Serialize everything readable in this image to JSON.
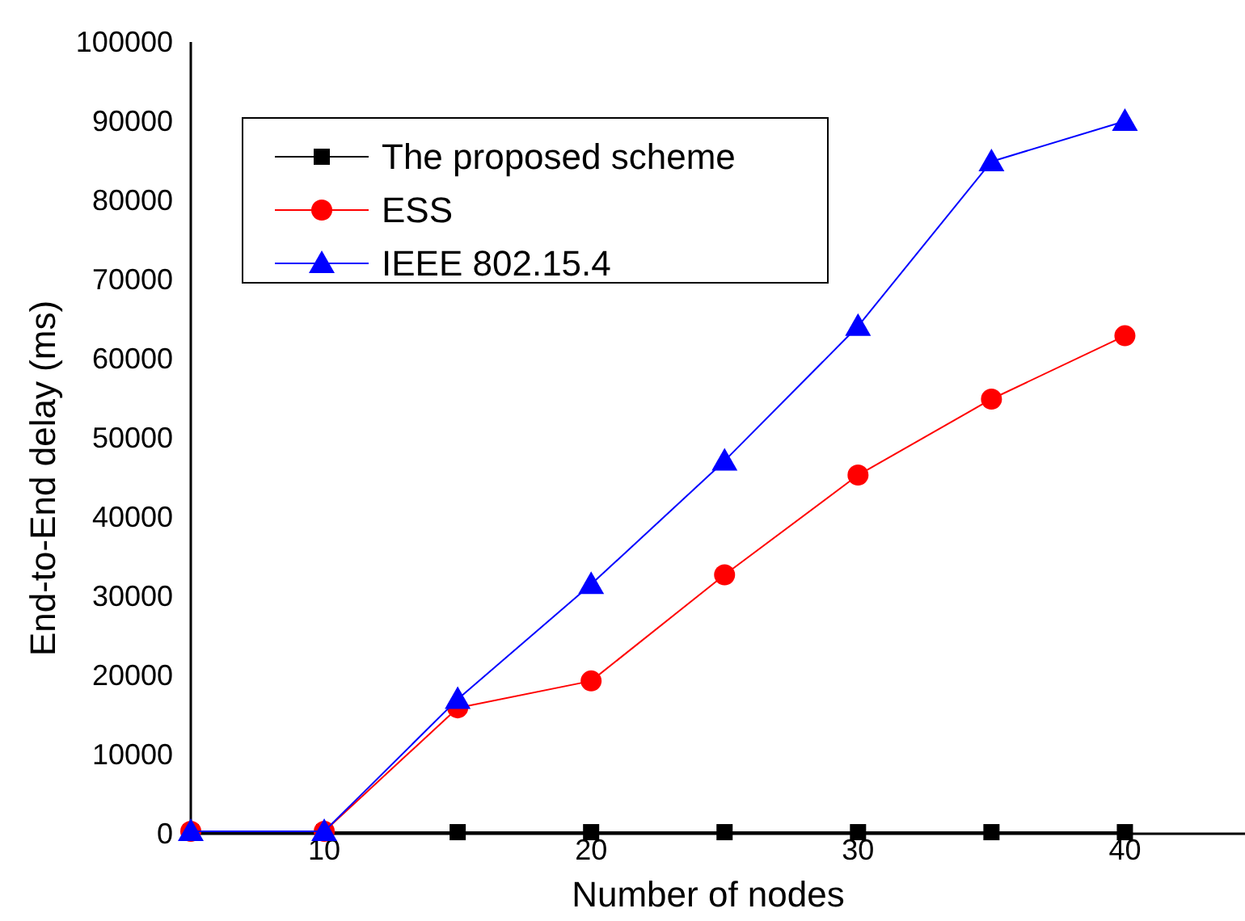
{
  "chart_data": {
    "type": "line",
    "xlabel": "Number of nodes",
    "ylabel": "End-to-End delay (ms)",
    "x": [
      5,
      10,
      15,
      20,
      25,
      30,
      35,
      40
    ],
    "xlim": [
      5,
      44.5
    ],
    "xticks": [
      10,
      20,
      30,
      40
    ],
    "ylim": [
      0,
      100000
    ],
    "yticks": [
      0,
      10000,
      20000,
      30000,
      40000,
      50000,
      60000,
      70000,
      80000,
      90000,
      100000
    ],
    "grid": false,
    "legend": "top left",
    "series": [
      {
        "name": "The proposed scheme",
        "color": "#000000",
        "marker": "square",
        "values": [
          200,
          200,
          200,
          200,
          200,
          200,
          200,
          200
        ]
      },
      {
        "name": "ESS",
        "color": "#ff0000",
        "marker": "circle",
        "values": [
          300,
          300,
          15900,
          19300,
          32700,
          45300,
          54900,
          62900
        ]
      },
      {
        "name": "IEEE 802.15.4",
        "color": "#0000ff",
        "marker": "triangle",
        "values": [
          300,
          300,
          17000,
          31500,
          47100,
          64100,
          84900,
          90000
        ]
      }
    ]
  }
}
